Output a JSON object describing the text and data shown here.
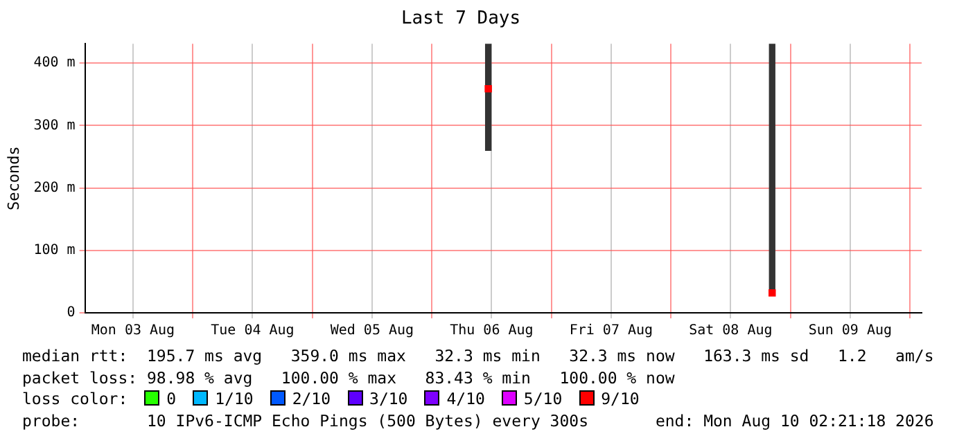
{
  "chart_data": {
    "type": "bar",
    "title": "Last 7 Days",
    "ylabel": "Seconds",
    "xlim": [
      "2026-08-03T02:21",
      "2026-08-10T02:21"
    ],
    "xticks": [
      {
        "value": "2026-08-03T12:00",
        "label": "Mon 03 Aug"
      },
      {
        "value": "2026-08-04T00:00",
        "label": null
      },
      {
        "value": "2026-08-04T12:00",
        "label": "Tue 04 Aug"
      },
      {
        "value": "2026-08-05T00:00",
        "label": null
      },
      {
        "value": "2026-08-05T12:00",
        "label": "Wed 05 Aug"
      },
      {
        "value": "2026-08-06T00:00",
        "label": null
      },
      {
        "value": "2026-08-06T12:00",
        "label": "Thu 06 Aug"
      },
      {
        "value": "2026-08-07T00:00",
        "label": null
      },
      {
        "value": "2026-08-07T12:00",
        "label": "Fri 07 Aug"
      },
      {
        "value": "2026-08-08T00:00",
        "label": null
      },
      {
        "value": "2026-08-08T12:00",
        "label": "Sat 08 Aug"
      },
      {
        "value": "2026-08-09T00:00",
        "label": null
      },
      {
        "value": "2026-08-09T12:00",
        "label": "Sun 09 Aug"
      },
      {
        "value": "2026-08-10T00:00",
        "label": null
      }
    ],
    "ylim": [
      0,
      431
    ],
    "yticks": [
      0,
      {
        "value": 100,
        "label": "100 m"
      },
      {
        "value": 200,
        "label": "200 m"
      },
      {
        "value": 300,
        "label": "300 m"
      },
      {
        "value": 400,
        "label": "400 m"
      }
    ],
    "grid": true,
    "legend": "bottom",
    "legend_title": "loss color:",
    "series": [
      {
        "color": "#333333",
        "x": [
          "2026-08-06T11:20",
          "2026-08-08T20:20"
        ],
        "base": [
          260,
          32
        ],
        "values": [
          171,
          399
        ]
      },
      {
        "type": "scatter",
        "marker": "square",
        "x": [
          "2026-08-06T11:20",
          "2026-08-08T20:20"
        ],
        "colors": [
          "#ff0000",
          "#ff0000"
        ],
        "values": [
          359,
          32
        ]
      },
      {
        "type": "scatter",
        "name": "0",
        "color": "#26ff00"
      },
      {
        "type": "scatter",
        "name": "1/10",
        "color": "#00b8ff"
      },
      {
        "type": "scatter",
        "name": "2/10",
        "color": "#0059ff"
      },
      {
        "type": "scatter",
        "name": "3/10",
        "color": "#5e00ff"
      },
      {
        "type": "scatter",
        "name": "4/10",
        "color": "#7e00ff"
      },
      {
        "type": "scatter",
        "name": "5/10",
        "color": "#dd00ff"
      },
      {
        "type": "scatter",
        "name": "9/10",
        "color": "#ff0000"
      }
    ],
    "annotations": [
      "median rtt:  195.7 ms avg   359.0 ms max   32.3 ms min   32.3 ms now   163.3 ms sd   1.2   am/s",
      "packet loss: 98.98 % avg   100.00 % max   83.43 % min   100.00 % now",
      "probe:       10 IPv6-ICMP Echo Pings (500 Bytes) every 300s       end: Mon Aug 10 02:21:18 2026"
    ]
  }
}
